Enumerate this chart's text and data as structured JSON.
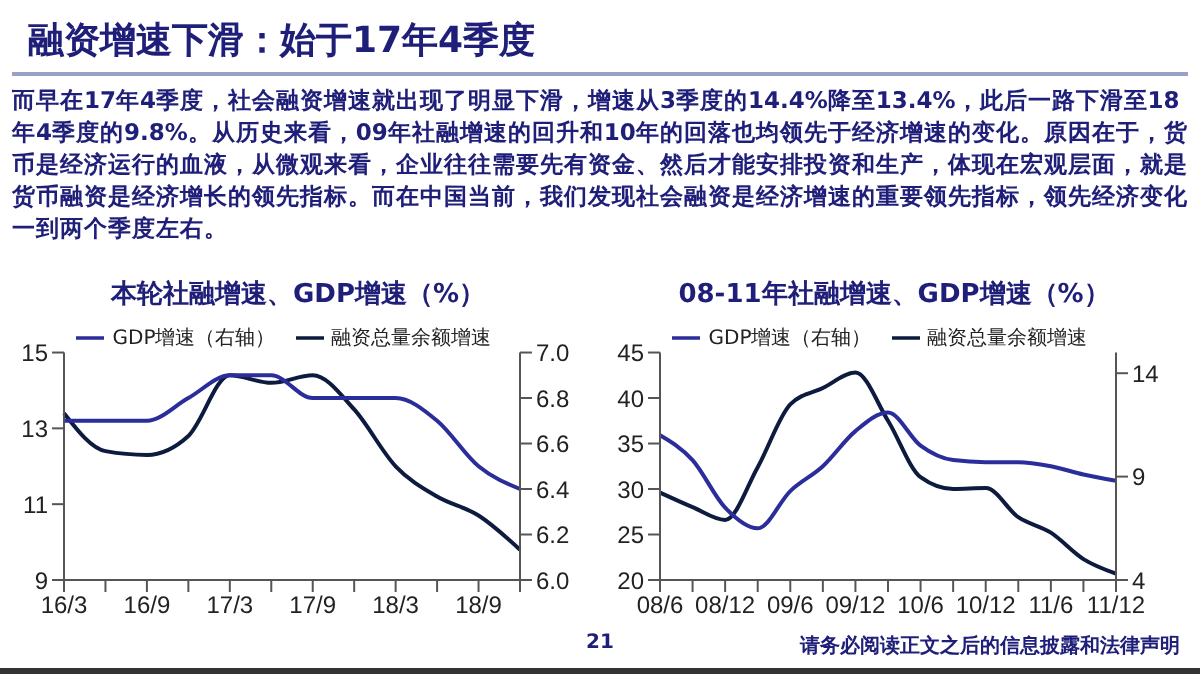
{
  "chart_data": [
    {
      "type": "line",
      "title": "本轮社融增速、GDP增速（%）",
      "annotations": [
        "融资增速下滑：始于17年4季度",
        "而早在17年4季度，社会融资增速就出现了明显下滑，增速从3季度的14.4%降至13.4%，此后一路下滑至18年4季度的9.8%。从历史来看，09年社融增速的回升和10年的回落也均领先于经济增速的变化。原因在于，货币是经济运行的血液，从微观来看，企业往往需要先有资金、然后才能安排投资和生产，体现在宏观层面，就是货币融资是经济增长的领先指标。而在中国当前，我们发现社会融资是经济增速的重要领先指标，领先经济变化一到两个季度左右。",
        "21",
        "请务必阅读正文之后的信息披露和法律声明"
      ],
      "categories": [
        "16/3",
        null,
        "16/9",
        null,
        "17/3",
        null,
        "17/9",
        null,
        "18/3",
        null,
        "18/9",
        null
      ],
      "series": [
        {
          "name": "融资总量余额增速",
          "color": "#0d1b3e",
          "values": [
            13.4,
            12.4,
            12.3,
            12.8,
            14.4,
            14.2,
            14.4,
            13.5,
            12.0,
            11.2,
            10.7,
            9.8
          ]
        },
        {
          "name": "GDP增速（右轴）",
          "color": "#2b2d9a",
          "axis": "y2",
          "values": [
            6.7,
            6.7,
            6.7,
            6.8,
            6.9,
            6.9,
            6.8,
            6.8,
            6.8,
            6.7,
            6.5,
            6.4
          ]
        }
      ],
      "ylim": [
        9,
        15
      ],
      "yticks": [
        9,
        11,
        13,
        15
      ],
      "y2lim": [
        6.0,
        7.0
      ],
      "y2ticks": [
        {
          "value": 6.0,
          "label": "6.0"
        },
        6.2,
        6.4,
        6.6,
        6.8,
        {
          "value": 7.0,
          "label": "7.0"
        }
      ],
      "legend": "top",
      "grid": false,
      "marker": "none",
      "line_style": "solid"
    },
    {
      "type": "line",
      "title": "08-11年社融增速、GDP增速（%）",
      "categories": [
        "08/6",
        null,
        "08/12",
        null,
        "09/6",
        null,
        "09/12",
        null,
        "10/6",
        null,
        "10/12",
        null,
        "11/6",
        null,
        "11/12"
      ],
      "series": [
        {
          "name": "融资总量余额增速",
          "color": "#0d1b3e",
          "values": [
            29.6,
            28,
            26.6,
            32.4,
            39.3,
            41.1,
            42.8,
            37.5,
            31.3,
            30,
            30.1,
            26.9,
            25.2,
            22.3,
            20.7
          ]
        },
        {
          "name": "GDP增速（右轴）",
          "color": "#2b2d9a",
          "axis": "y2",
          "values": [
            11.0,
            9.8,
            7.5,
            6.5,
            8.3,
            9.5,
            11.2,
            12.1,
            10.5,
            9.8,
            9.7,
            9.7,
            9.5,
            9.1,
            8.8
          ]
        }
      ],
      "ylim": [
        20,
        45
      ],
      "yticks": [
        20,
        25,
        30,
        35,
        40,
        45
      ],
      "y2lim": [
        4,
        15
      ],
      "y2ticks": [
        4,
        9,
        14
      ],
      "legend": "top",
      "grid": false,
      "marker": "none",
      "line_style": "solid"
    }
  ]
}
